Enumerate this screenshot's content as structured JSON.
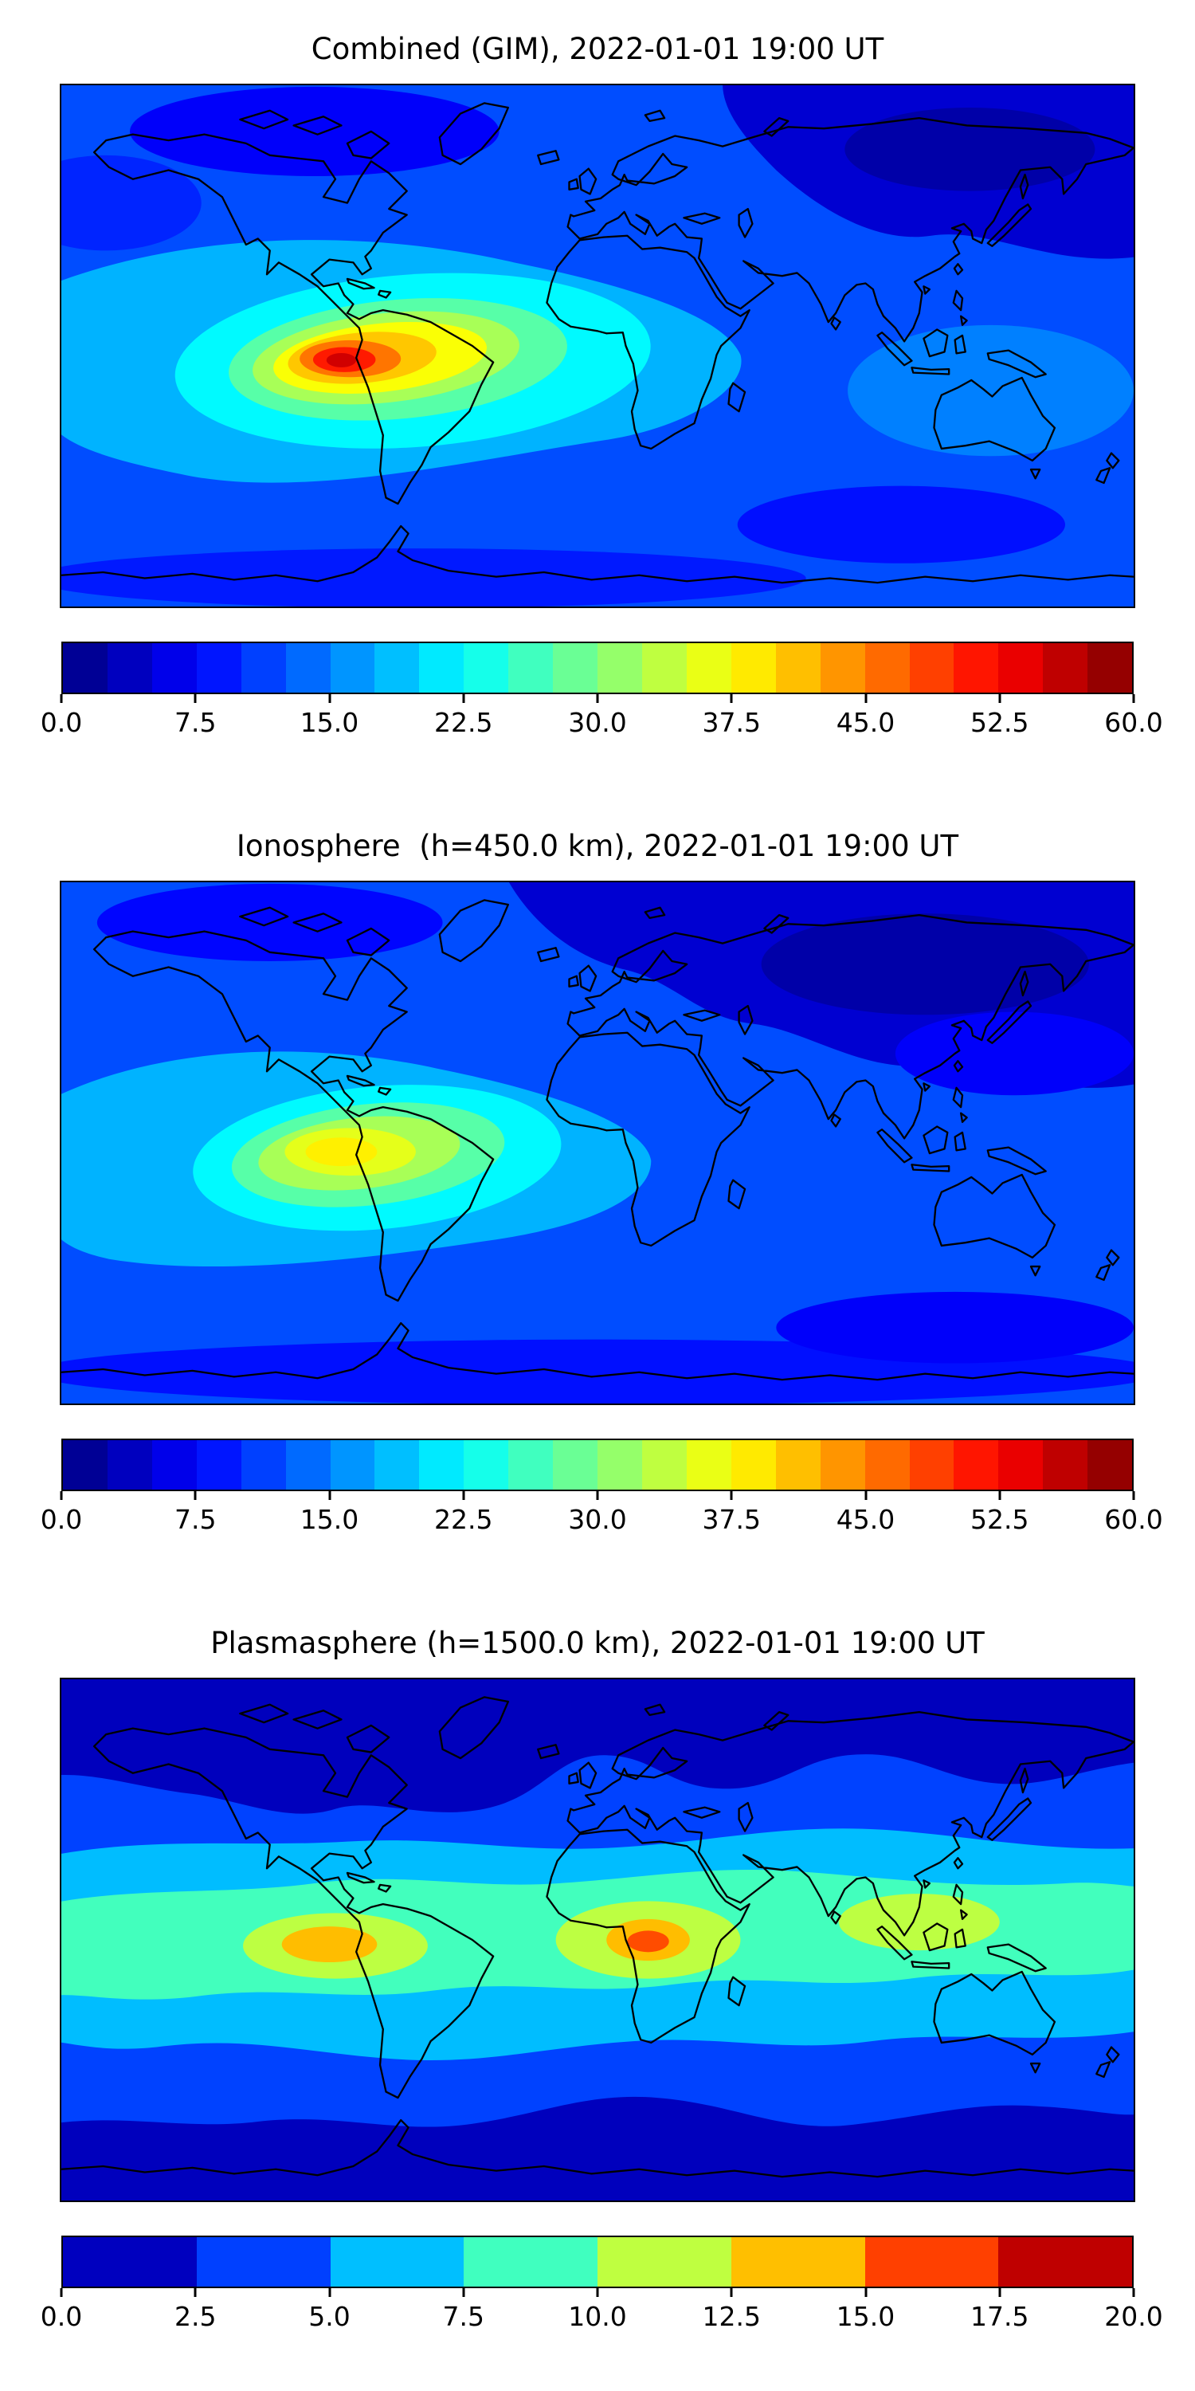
{
  "panels": [
    {
      "id": "combined",
      "title": "Combined (GIM), 2022-01-01 19:00 UT",
      "colorbar": {
        "min": 0.0,
        "max": 60.0,
        "n_segments": 24,
        "level_step": 2.5,
        "tick_labels": [
          "0.0",
          "7.5",
          "15.0",
          "22.5",
          "30.0",
          "37.5",
          "45.0",
          "52.5",
          "60.0"
        ]
      }
    },
    {
      "id": "ionosphere",
      "title": "Ionosphere  (h=450.0 km), 2022-01-01 19:00 UT",
      "colorbar": {
        "min": 0.0,
        "max": 60.0,
        "n_segments": 24,
        "level_step": 2.5,
        "tick_labels": [
          "0.0",
          "7.5",
          "15.0",
          "22.5",
          "30.0",
          "37.5",
          "45.0",
          "52.5",
          "60.0"
        ]
      }
    },
    {
      "id": "plasmasphere",
      "title": "Plasmasphere (h=1500.0 km), 2022-01-01 19:00 UT",
      "colorbar": {
        "min": 0.0,
        "max": 20.0,
        "n_segments": 8,
        "level_step": 2.5,
        "tick_labels": [
          "0.0",
          "2.5",
          "5.0",
          "7.5",
          "10.0",
          "12.5",
          "15.0",
          "17.5",
          "20.0"
        ]
      }
    }
  ],
  "chart_data": [
    {
      "type": "heatmap",
      "title": "Combined (GIM), 2022-01-01 19:00 UT",
      "projection": "equirectangular world map, lon -180..180, lat about -87.5..87.5",
      "colormap": "jet",
      "colorbar_range": [
        0,
        60
      ],
      "colorbar_ticks": [
        0.0,
        7.5,
        15.0,
        22.5,
        30.0,
        37.5,
        45.0,
        52.5,
        60.0
      ],
      "contour_level_step": 2.5,
      "overlay": "black world coastlines",
      "features": [
        {
          "description": "global maximum (equatorial ionization anomaly) over eastern Pacific just off Peru",
          "lon": -85,
          "lat": -6,
          "approx_value": 57
        },
        {
          "description": "orange ring around peak",
          "lon": -85,
          "lat": -6,
          "approx_value": 48
        },
        {
          "description": "yellow elevated region covering tropical South America into South Atlantic",
          "lon": -55,
          "lat": -8,
          "approx_value": 38
        },
        {
          "description": "cyan mid-level band from central Pacific across Atlantic to western Africa",
          "lon": -30,
          "lat": -5,
          "approx_value": 25
        },
        {
          "description": "night-side minimum over Siberia / northeast Asia",
          "lon": 120,
          "lat": 55,
          "approx_value": 3
        },
        {
          "description": "background day/evening mid-latitude level",
          "approx_value": 10
        }
      ]
    },
    {
      "type": "heatmap",
      "title": "Ionosphere  (h=450.0 km), 2022-01-01 19:00 UT",
      "projection": "equirectangular world map, lon -180..180, lat about -87.5..87.5",
      "colormap": "jet",
      "colorbar_range": [
        0,
        60
      ],
      "colorbar_ticks": [
        0.0,
        7.5,
        15.0,
        22.5,
        30.0,
        37.5,
        45.0,
        52.5,
        60.0
      ],
      "contour_level_step": 2.5,
      "overlay": "black world coastlines",
      "features": [
        {
          "description": "maximum over eastern Pacific west of Peru",
          "lon": -88,
          "lat": -6,
          "approx_value": 38
        },
        {
          "description": "green-cyan elevated oval over South America / southeast Pacific",
          "lon": -75,
          "lat": -8,
          "approx_value": 28
        },
        {
          "description": "broad cyan region to about west Africa",
          "lon": -20,
          "lat": -8,
          "approx_value": 20
        },
        {
          "description": "deep night-side minimum covering most of Asia and north Pacific",
          "lon": 110,
          "lat": 50,
          "approx_value": 2
        },
        {
          "description": "background level elsewhere",
          "approx_value": 10
        }
      ]
    },
    {
      "type": "heatmap",
      "title": "Plasmasphere (h=1500.0 km), 2022-01-01 19:00 UT",
      "projection": "equirectangular world map, lon -180..180, lat about -87.5..87.5",
      "colormap": "jet",
      "colorbar_range": [
        0,
        20
      ],
      "colorbar_ticks": [
        0.0,
        2.5,
        5.0,
        7.5,
        10.0,
        12.5,
        15.0,
        17.5,
        20.0
      ],
      "contour_level_step": 2.5,
      "overlay": "black world coastlines",
      "features": [
        {
          "description": "global maximum over central Africa near the equator",
          "lon": 12,
          "lat": -1,
          "approx_value": 17
        },
        {
          "description": "secondary maximum over eastern Pacific west of South America",
          "lon": -88,
          "lat": 0,
          "approx_value": 15
        },
        {
          "description": "green-yellow patch over southeast Asia / Indonesia",
          "lon": 105,
          "lat": 5,
          "approx_value": 12
        },
        {
          "description": "aqua-green belt along the (geo)magnetic equator spanning all longitudes",
          "approx_value": 9
        },
        {
          "description": "light-blue belt bounding the equatorial belt",
          "approx_value": 6
        },
        {
          "description": "dark navy minima bands at high northern and southern latitudes",
          "approx_value": 1.5
        }
      ]
    }
  ]
}
